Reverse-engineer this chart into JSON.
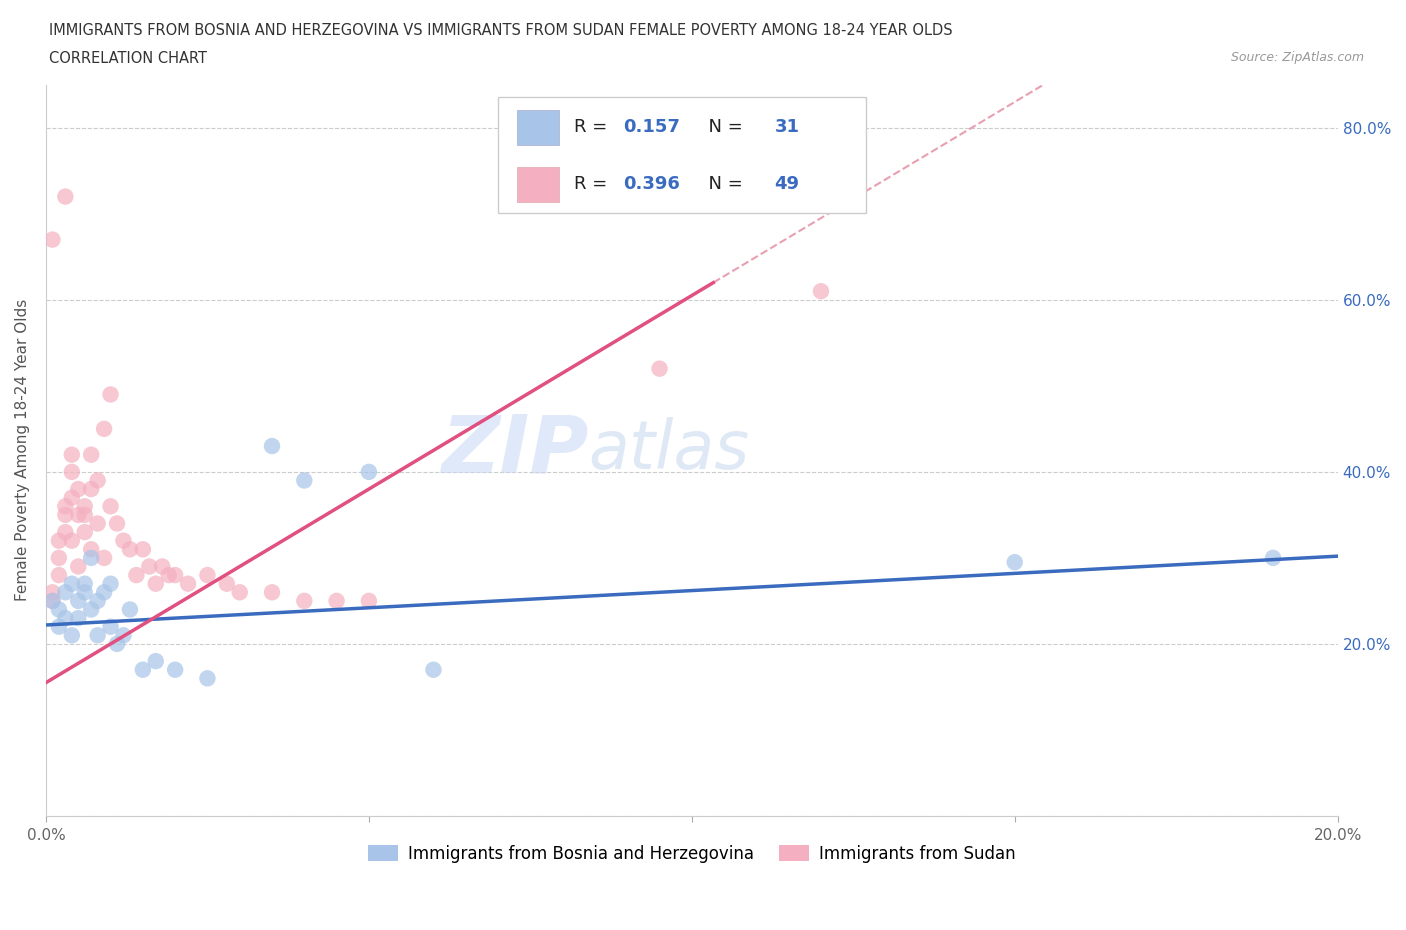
{
  "title_line1": "IMMIGRANTS FROM BOSNIA AND HERZEGOVINA VS IMMIGRANTS FROM SUDAN FEMALE POVERTY AMONG 18-24 YEAR OLDS",
  "title_line2": "CORRELATION CHART",
  "source_text": "Source: ZipAtlas.com",
  "ylabel": "Female Poverty Among 18-24 Year Olds",
  "legend_label_blue": "Immigrants from Bosnia and Herzegovina",
  "legend_label_pink": "Immigrants from Sudan",
  "R_blue": 0.157,
  "N_blue": 31,
  "R_pink": 0.396,
  "N_pink": 49,
  "xlim": [
    0.0,
    0.2
  ],
  "ylim": [
    0.0,
    0.85
  ],
  "x_ticks": [
    0.0,
    0.05,
    0.1,
    0.15,
    0.2
  ],
  "x_tick_labels": [
    "0.0%",
    "",
    "",
    "",
    "20.0%"
  ],
  "y_ticks": [
    0.0,
    0.2,
    0.4,
    0.6,
    0.8
  ],
  "y_tick_labels_left": [
    "",
    "",
    "",
    "",
    ""
  ],
  "y_tick_labels_right": [
    "",
    "20.0%",
    "40.0%",
    "60.0%",
    "80.0%"
  ],
  "watermark_zip": "ZIP",
  "watermark_atlas": "atlas",
  "color_blue": "#a8c4e8",
  "color_pink": "#f4b0c0",
  "color_blue_line": "#3a6bbf",
  "color_pink_line": "#e05080",
  "color_blue_dark": "#3a6bbf",
  "color_dashed": "#e8a0b0",
  "grid_color": "#cccccc",
  "background_color": "#ffffff",
  "blue_scatter": [
    [
      0.001,
      0.25
    ],
    [
      0.002,
      0.24
    ],
    [
      0.002,
      0.22
    ],
    [
      0.003,
      0.26
    ],
    [
      0.003,
      0.23
    ],
    [
      0.004,
      0.27
    ],
    [
      0.004,
      0.21
    ],
    [
      0.005,
      0.25
    ],
    [
      0.005,
      0.23
    ],
    [
      0.006,
      0.26
    ],
    [
      0.006,
      0.27
    ],
    [
      0.007,
      0.3
    ],
    [
      0.007,
      0.24
    ],
    [
      0.008,
      0.25
    ],
    [
      0.008,
      0.21
    ],
    [
      0.009,
      0.26
    ],
    [
      0.01,
      0.27
    ],
    [
      0.01,
      0.22
    ],
    [
      0.011,
      0.2
    ],
    [
      0.012,
      0.21
    ],
    [
      0.013,
      0.24
    ],
    [
      0.015,
      0.17
    ],
    [
      0.017,
      0.18
    ],
    [
      0.02,
      0.17
    ],
    [
      0.025,
      0.16
    ],
    [
      0.035,
      0.43
    ],
    [
      0.04,
      0.39
    ],
    [
      0.05,
      0.4
    ],
    [
      0.06,
      0.17
    ],
    [
      0.15,
      0.295
    ],
    [
      0.19,
      0.3
    ]
  ],
  "pink_scatter": [
    [
      0.001,
      0.25
    ],
    [
      0.001,
      0.26
    ],
    [
      0.002,
      0.3
    ],
    [
      0.002,
      0.28
    ],
    [
      0.002,
      0.32
    ],
    [
      0.003,
      0.35
    ],
    [
      0.003,
      0.33
    ],
    [
      0.003,
      0.36
    ],
    [
      0.004,
      0.32
    ],
    [
      0.004,
      0.37
    ],
    [
      0.004,
      0.4
    ],
    [
      0.004,
      0.42
    ],
    [
      0.005,
      0.35
    ],
    [
      0.005,
      0.38
    ],
    [
      0.005,
      0.29
    ],
    [
      0.006,
      0.33
    ],
    [
      0.006,
      0.35
    ],
    [
      0.006,
      0.36
    ],
    [
      0.007,
      0.31
    ],
    [
      0.007,
      0.38
    ],
    [
      0.007,
      0.42
    ],
    [
      0.008,
      0.34
    ],
    [
      0.008,
      0.39
    ],
    [
      0.009,
      0.3
    ],
    [
      0.009,
      0.45
    ],
    [
      0.01,
      0.36
    ],
    [
      0.01,
      0.49
    ],
    [
      0.011,
      0.34
    ],
    [
      0.012,
      0.32
    ],
    [
      0.013,
      0.31
    ],
    [
      0.014,
      0.28
    ],
    [
      0.015,
      0.31
    ],
    [
      0.016,
      0.29
    ],
    [
      0.017,
      0.27
    ],
    [
      0.018,
      0.29
    ],
    [
      0.019,
      0.28
    ],
    [
      0.02,
      0.28
    ],
    [
      0.022,
      0.27
    ],
    [
      0.025,
      0.28
    ],
    [
      0.028,
      0.27
    ],
    [
      0.03,
      0.26
    ],
    [
      0.035,
      0.26
    ],
    [
      0.04,
      0.25
    ],
    [
      0.045,
      0.25
    ],
    [
      0.05,
      0.25
    ],
    [
      0.001,
      0.67
    ],
    [
      0.003,
      0.72
    ],
    [
      0.095,
      0.52
    ],
    [
      0.12,
      0.61
    ]
  ]
}
